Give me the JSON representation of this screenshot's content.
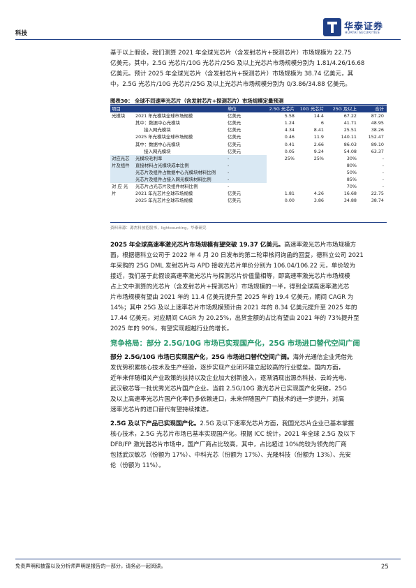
{
  "header": {
    "section_label": "科技",
    "logo_cn": "华泰证券",
    "logo_en": "HUATAI SECURITIES"
  },
  "intro": {
    "lines": [
      "基于以上假设，我们测算 2021 年全球光芯片（含发射芯片+探测芯片）市场规模为 22.75",
      "亿美元，其中，2.5G 光芯片/10G 光芯片/25G 及以上光芯片市场规模分别为 1.81/4.26/16.68",
      "亿美元。预计 2025 年全球光芯片（含发射芯片+探测芯片）市场规模为 38.74 亿美元，其",
      "中，2.5G 光芯片/10G 光芯片/25G 及以上光芯片市场规模分别为 0/3.86/34.88 亿美元。"
    ]
  },
  "table": {
    "title": "图表30：  全球不同速率光芯片（含发射芯片+探测芯片）市场规模定量预测",
    "headers": [
      "项目",
      "",
      "单位",
      "2.5G 光芯片",
      "10G 光芯片",
      "25G 及以上",
      "合计"
    ],
    "rows": [
      {
        "c1": "光模块",
        "c2": "2021 年光模块全球市场规模",
        "unit": "亿美元",
        "v1": "5.58",
        "v2": "14.4",
        "v3": "67.22",
        "v4": "87.20"
      },
      {
        "c1": "",
        "c2": "其中：数据中心光模块",
        "unit": "亿美元",
        "v1": "1.24",
        "v2": "6",
        "v3": "41.71",
        "v4": "48.95"
      },
      {
        "c1": "",
        "c2": "      接入网光模块",
        "unit": "亿美元",
        "v1": "4.34",
        "v2": "8.41",
        "v3": "25.51",
        "v4": "38.26"
      },
      {
        "c1": "",
        "c2": "2025 年光模块全球市场规模",
        "unit": "亿美元",
        "v1": "0.46",
        "v2": "11.9",
        "v3": "140.11",
        "v4": "152.47"
      },
      {
        "c1": "",
        "c2": "其中：数据中心光模块",
        "unit": "亿美元",
        "v1": "0.41",
        "v2": "2.66",
        "v3": "86.03",
        "v4": "89.10"
      },
      {
        "c1": "",
        "c2": "      接入网光模块",
        "unit": "亿美元",
        "v1": "0.05",
        "v2": "9.24",
        "v3": "54.08",
        "v4": "63.37"
      },
      {
        "c1": "对应光芯",
        "c2": "光模块毛利率",
        "unit": "-",
        "v1": "25%",
        "v2": "25%",
        "v3": "30%",
        "v4": "-"
      },
      {
        "c1": "片及组件",
        "c2": "直接材料占光模块成本比例",
        "unit": "-",
        "v1": "",
        "v2": "",
        "v3": "80%",
        "v4": "-"
      },
      {
        "c1": "",
        "c2": "光芯片及组件占数据中心光模块材料比例",
        "unit": "-",
        "v1": "",
        "v2": "",
        "v3": "50%",
        "v4": "-"
      },
      {
        "c1": "",
        "c2": "光芯片及组件占接入网光模块材料比例",
        "unit": "-",
        "v1": "",
        "v2": "",
        "v3": "85%",
        "v4": "-"
      },
      {
        "c1": "对 应 光",
        "c2": "光芯片占光芯片及组件材料比例",
        "unit": "-",
        "v1": "",
        "v2": "",
        "v3": "70%",
        "v4": "-"
      },
      {
        "c1": "片",
        "c2": "2021 年光芯片全球市场规模",
        "unit": "亿美元",
        "v1": "1.81",
        "v2": "4.26",
        "v3": "16.68",
        "v4": "22.75"
      },
      {
        "c1": "",
        "c2": "2025 年光芯片全球市场规模",
        "unit": "亿美元",
        "v1": "0.00",
        "v2": "3.86",
        "v3": "34.88",
        "v4": "38.74"
      }
    ],
    "source": "资料来源：源杰科技招股书，lightcounting，华泰研究"
  },
  "para2": {
    "lead": "2025 年全球高速率激光芯片市场规模有望突破 19.37 亿美元。",
    "lines_first": "高速率激光芯片市场规模方",
    "lines": [
      "面，根据德科立公司于 2022 年 4 月 20 日发布的第二轮审核问询函的回复，德科立公司 2021",
      "年采购的 25G DML 发射芯片与 APD 接收光芯片单价分别为 106.04/106.22 元，单价较为",
      "接近，我们基于此假设高速率激光芯片与探测芯片价值量相等，即高速率激光芯片市场规模",
      "占上文中测算的光芯片（含发射芯片+探测芯片）市场规模的一半，得到全球高速率激光芯",
      "片市场规模有望由 2021 年的 11.4 亿美元提升至 2025 年的 19.4 亿美元，期间 CAGR 为",
      "14%；其中 25G 及以上速率芯片市场规模预计由 2021 年的 8.34 亿美元提升至 2025 年的",
      "17.44 亿美元，对应期间 CAGR 为 20.25%，出货金额的占比有望由 2021 年的 73%提升至",
      "2025 年的 90%，有望实现超越行业的增长。"
    ]
  },
  "heading": "竞争格局：部分 2.5G/10G 市场已实现国产化，25G 市场进口替代空间广阔",
  "para3": {
    "lead": "部分 2.5G/10G 市场已实现国产化，25G 市场进口替代空间广阔。",
    "lines_first": "海外光通信企业凭借先",
    "lines": [
      "发优势积累核心技术及生产经验，逐步实现产业闭环建立起较高的行业壁垒。国内方面，",
      "近年来伴随相关产业政策的扶持以及企业加大创新投入，逐渐涌现出源杰科技、云岭光电、",
      "武汉敏芯等一批优秀光芯片国产企业。当前 2.5G/10G 激光芯片已实现国产化突破，25G",
      "及以上高速率光芯片国产化率仍多依赖进口，未来伴随国产厂商技术的进一步提升，对高",
      "速率光芯片的进口替代有望持续推进。"
    ]
  },
  "para4": {
    "lead": "2.5G 及以下产品已实现国产化。",
    "lines_first": "2.5G 及以下速率光芯片方面，我国光芯片企业已基本掌握",
    "lines": [
      "核心技术，2.5G 光芯片市场已基本实现国产化。根据 ICC 统计，2021 年全球 2.5G 及以下",
      "DFB/FP 激光器芯片市场中，国产厂商占比较高，其中，占比超过 10%的较为领先的厂商",
      "包括武汉敏芯（份额为 17%）、中科光芯（份额为 17%）、光隆科技（份额为 13%）、光安",
      "伦（份额为 11%）。"
    ]
  },
  "footer": {
    "note": "免责声明和披露以及分析师声明是报告的一部分，请务必一起阅读。",
    "page": "25"
  }
}
